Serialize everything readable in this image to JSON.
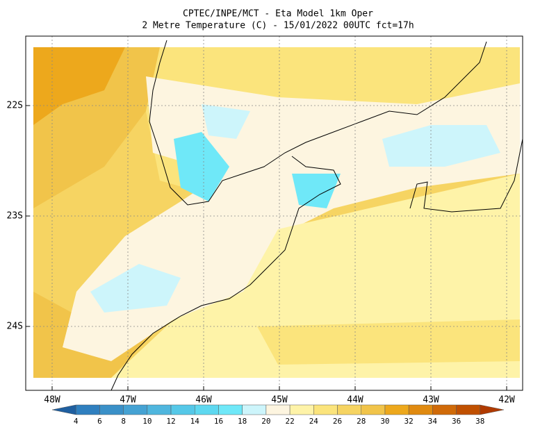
{
  "title": [
    "CPTEC/INPE/MCT -  Eta Model 1km Oper",
    "2 Metre Temperature (C) - 15/01/2022 00UTC fct=17h"
  ],
  "lat_labels": [
    "22S",
    "23S",
    "24S"
  ],
  "lon_labels": [
    "48W",
    "47W",
    "46W",
    "45W",
    "44W",
    "43W",
    "42W"
  ],
  "colorbar": {
    "labels": [
      4,
      6,
      8,
      10,
      12,
      14,
      16,
      18,
      20,
      22,
      24,
      26,
      28,
      30,
      32,
      34,
      36,
      38
    ],
    "colors": [
      "#1f5fa0",
      "#2f7fbf",
      "#3a90c8",
      "#45a2d3",
      "#4fb6de",
      "#55c8e8",
      "#5ed8f0",
      "#6fe8f8",
      "#cdf5fb",
      "#fdf5e0",
      "#fef3a8",
      "#fbe47c",
      "#f6d462",
      "#f1c44a",
      "#eda81c",
      "#e08a10",
      "#d06a08",
      "#c05000",
      "#b03a00"
    ]
  }
}
